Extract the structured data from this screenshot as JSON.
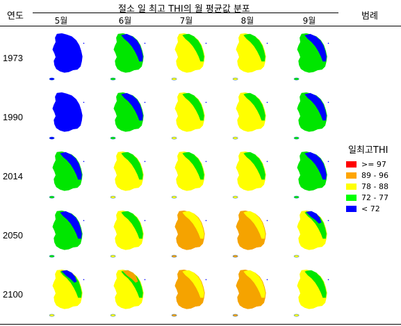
{
  "table": {
    "corner_label": "연도",
    "title": "절소 일 최고 THI의 월 평균값 분포",
    "legend_header": "범례",
    "months": [
      "5월",
      "6월",
      "7월",
      "8월",
      "9월"
    ],
    "years": [
      "1973",
      "1990",
      "2014",
      "2050",
      "2100"
    ]
  },
  "legend": {
    "title": "일최고THI",
    "items": [
      {
        "label": ">= 97",
        "color": "#ff0000"
      },
      {
        "label": "89  -  96",
        "color": "#ffa500"
      },
      {
        "label": "78  -  88",
        "color": "#ffff00"
      },
      {
        "label": "72  -  77",
        "color": "#00ff00"
      },
      {
        "label": "< 72",
        "color": "#0000ff"
      }
    ]
  },
  "map_grid": [
    [
      {
        "base": "blue",
        "overlay": "none",
        "patches": "none"
      },
      {
        "base": "green",
        "overlay": "blue",
        "patches": "none"
      },
      {
        "base": "yellow",
        "overlay": "green",
        "patches": "none"
      },
      {
        "base": "yellow",
        "overlay": "green",
        "patches": "none"
      },
      {
        "base": "green",
        "overlay": "blue",
        "patches": "none"
      }
    ],
    [
      {
        "base": "blue",
        "overlay": "none",
        "patches": "none"
      },
      {
        "base": "green",
        "overlay": "blue",
        "patches": "none"
      },
      {
        "base": "yellow",
        "overlay": "green",
        "patches": "none"
      },
      {
        "base": "yellow",
        "overlay": "green",
        "patches": "none"
      },
      {
        "base": "green",
        "overlay": "blue",
        "patches": "none"
      }
    ],
    [
      {
        "base": "green",
        "overlay": "blue",
        "patches": "none"
      },
      {
        "base": "yellow",
        "overlay": "green",
        "patches": "none"
      },
      {
        "base": "yellow",
        "overlay": "green",
        "patches": "none"
      },
      {
        "base": "yellow",
        "overlay": "green",
        "patches": "none"
      },
      {
        "base": "green",
        "overlay": "blue",
        "patches": "none"
      }
    ],
    [
      {
        "base": "green",
        "overlay": "blue",
        "patches": "none"
      },
      {
        "base": "yellow",
        "overlay": "green",
        "patches": "none"
      },
      {
        "base": "orange",
        "overlay": "yellow",
        "patches": "none"
      },
      {
        "base": "orange",
        "overlay": "yellow",
        "patches": "none"
      },
      {
        "base": "yellow",
        "overlay": "green",
        "patches": "blue"
      }
    ],
    [
      {
        "base": "yellow",
        "overlay": "green",
        "patches": "blue"
      },
      {
        "base": "yellow",
        "overlay": "green",
        "patches": "orange"
      },
      {
        "base": "orange",
        "overlay": "yellow",
        "patches": "none"
      },
      {
        "base": "orange",
        "overlay": "yellow",
        "patches": "none"
      },
      {
        "base": "yellow",
        "overlay": "green",
        "patches": "none"
      }
    ]
  ],
  "colors": {
    "blue": "#0000ff",
    "green": "#00e600",
    "yellow": "#ffff00",
    "orange": "#f5a300",
    "red": "#ff0000"
  }
}
